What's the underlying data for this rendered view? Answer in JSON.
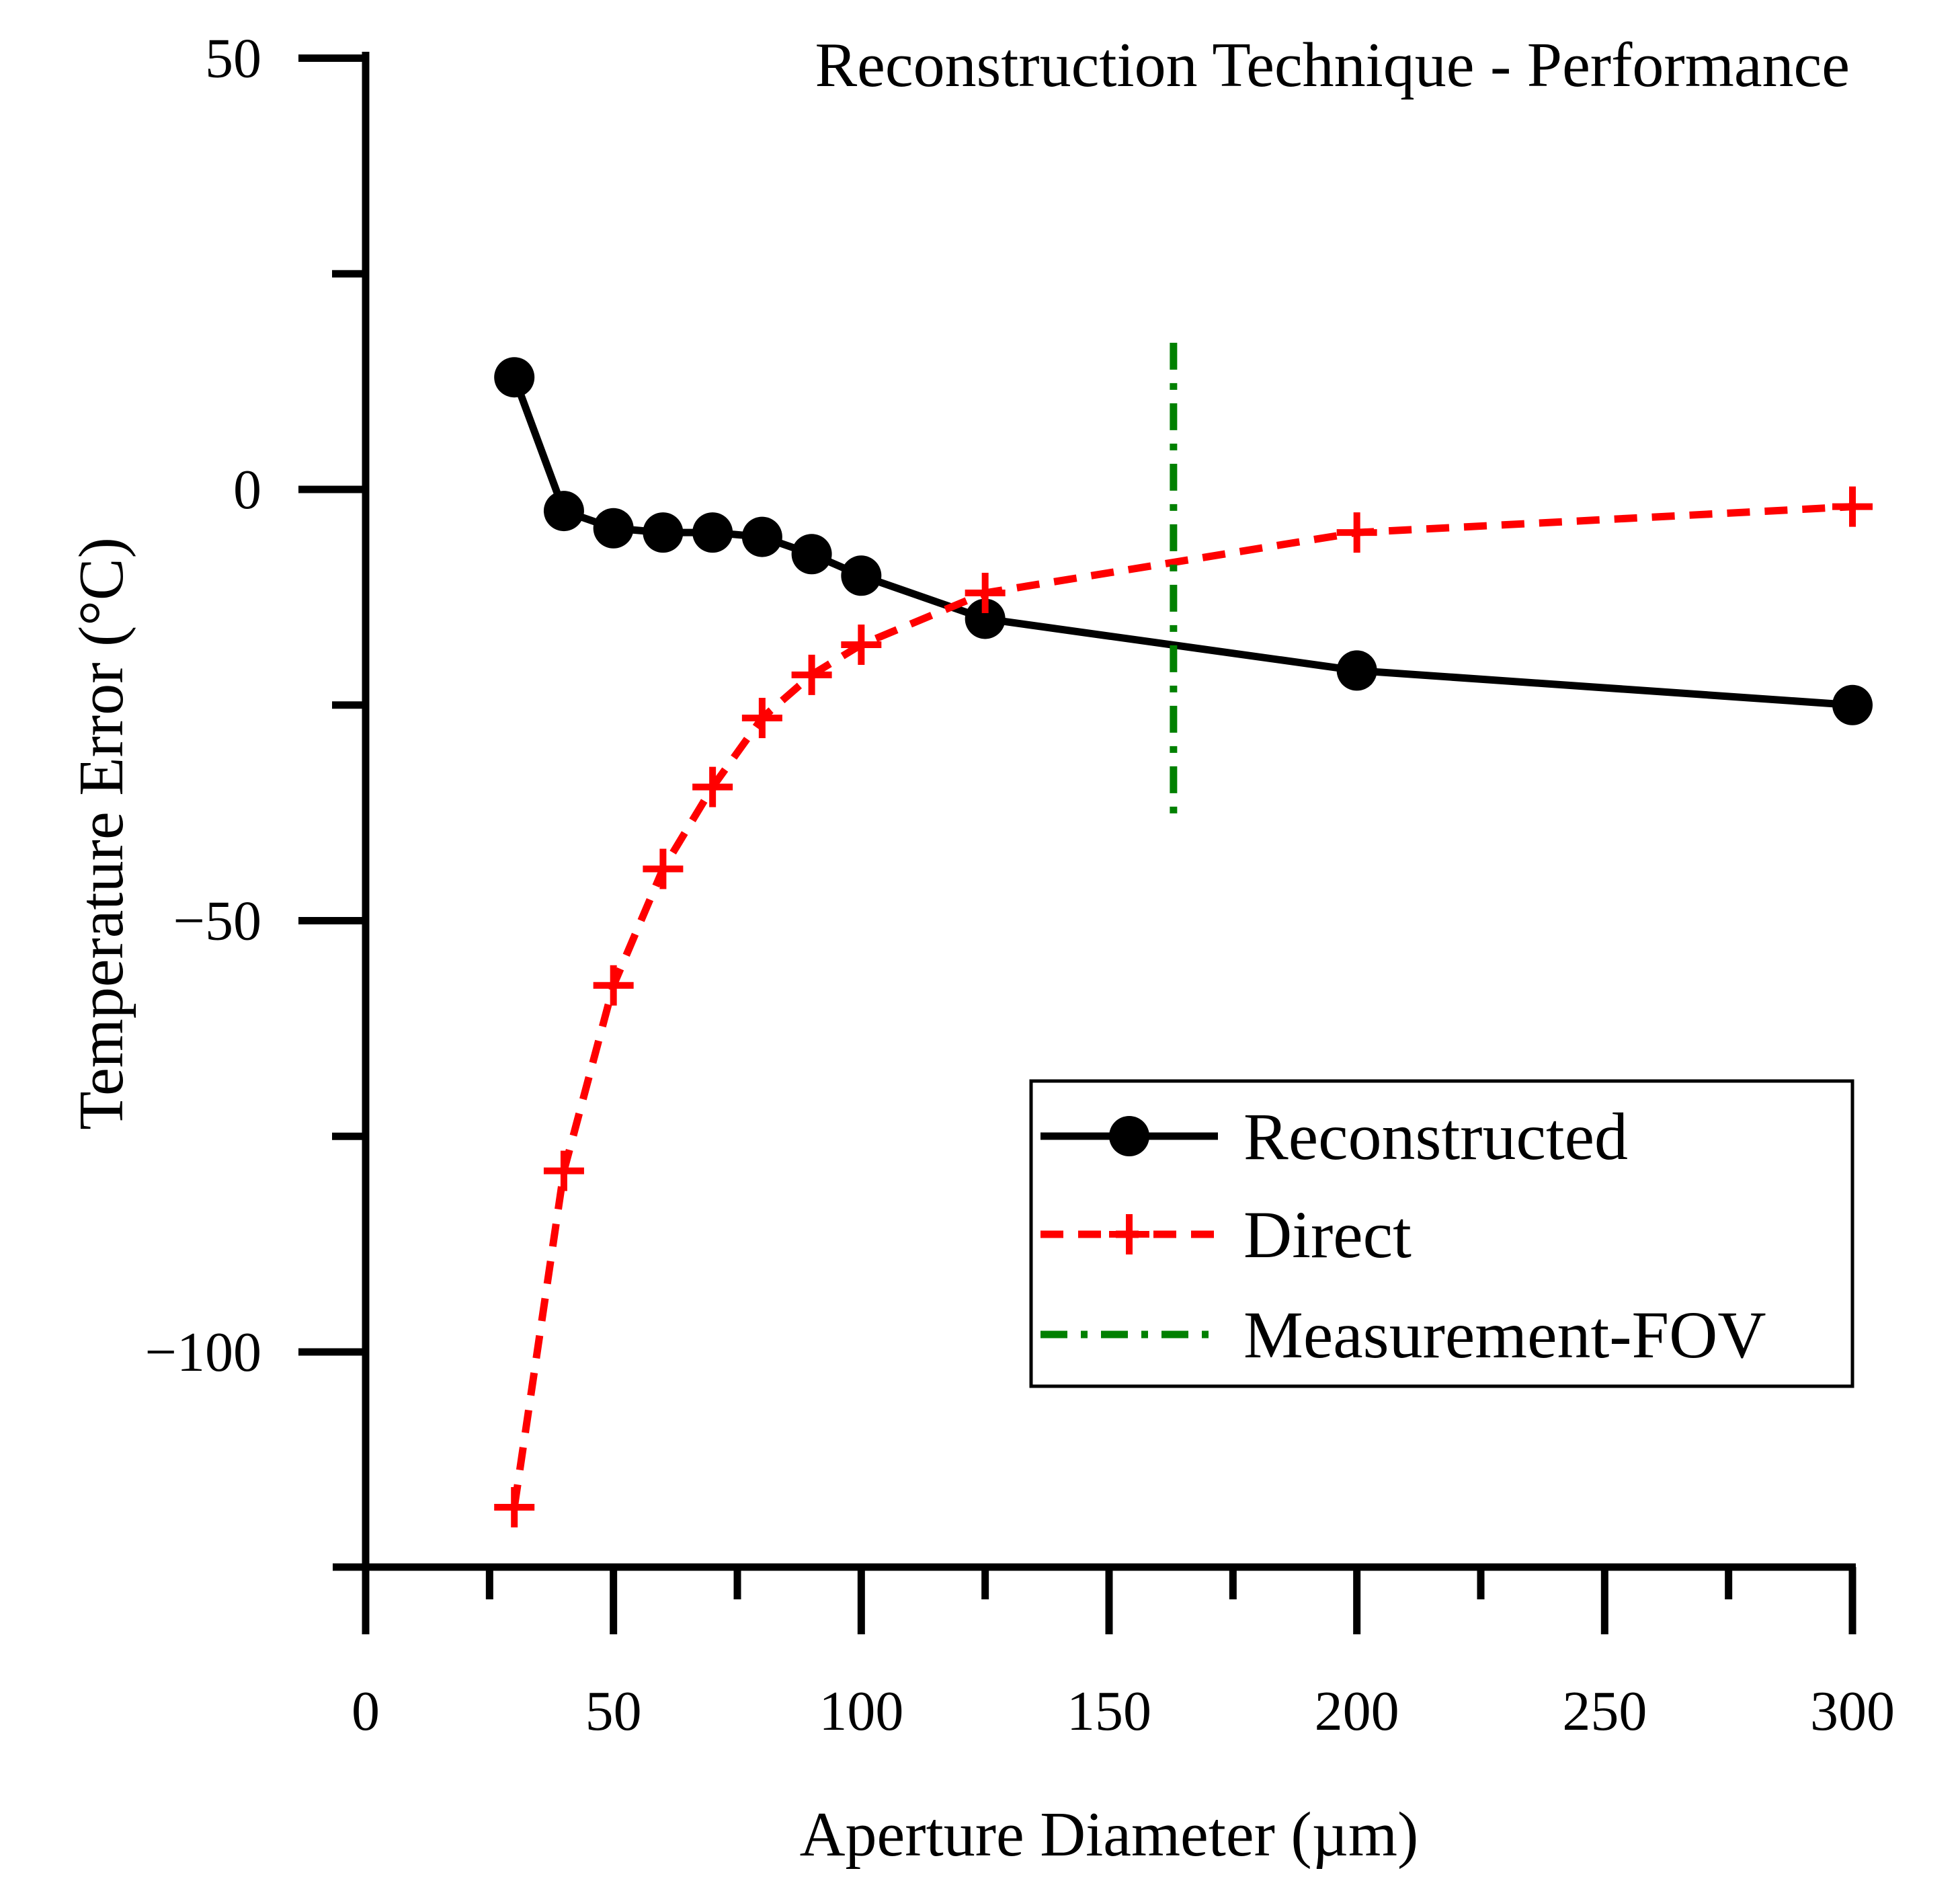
{
  "chart_data": {
    "type": "line",
    "title": "Reconstruction Technique - Performance",
    "xlabel": "Aperture Diameter (µm)",
    "ylabel": "Temperature Error (°C)",
    "xlim": [
      0,
      300
    ],
    "ylim": [
      -125,
      50
    ],
    "x_major_ticks": [
      0,
      50,
      100,
      150,
      200,
      250,
      300
    ],
    "x_minor_ticks": [
      25,
      75,
      125,
      175,
      225,
      275
    ],
    "x_tick_labels": [
      "0",
      "50",
      "100",
      "150",
      "200",
      "250",
      "300"
    ],
    "y_major_ticks": [
      50,
      0,
      -50,
      -100
    ],
    "y_minor_ticks": [
      25,
      -25,
      -75
    ],
    "y_tick_labels": [
      "50",
      "0",
      "−50",
      "−100"
    ],
    "grid": false,
    "legend_position": "bottom-right",
    "series": [
      {
        "name": "Reconstructed",
        "color": "#000000",
        "line_style": "solid",
        "marker": "circle",
        "x": [
          30,
          40,
          50,
          60,
          70,
          80,
          90,
          100,
          125,
          200,
          300
        ],
        "y": [
          13,
          -2.5,
          -4.5,
          -5,
          -5,
          -5.5,
          -7.5,
          -10,
          -15,
          -21,
          -25
        ]
      },
      {
        "name": "Direct",
        "color": "#ff0000",
        "line_style": "dashed",
        "marker": "plus",
        "x": [
          30,
          40,
          50,
          60,
          70,
          80,
          90,
          100,
          125,
          200,
          300
        ],
        "y": [
          -118,
          -79,
          -57.5,
          -44,
          -34.5,
          -26.5,
          -21.5,
          -18,
          -12,
          -5,
          -2
        ]
      },
      {
        "name": "Measurement-FOV",
        "color": "#008000",
        "line_style": "dashdot",
        "marker": "none",
        "x": [
          163,
          163
        ],
        "y": [
          17,
          -38
        ]
      }
    ]
  }
}
